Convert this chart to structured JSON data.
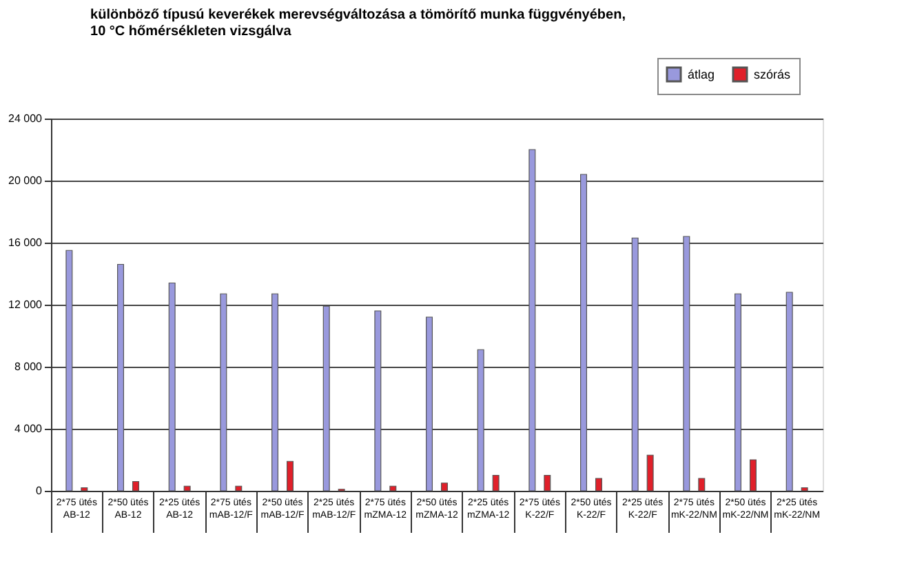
{
  "chart_data": {
    "type": "bar",
    "title": [
      "különböző típusú keverékek merevségváltozása a tömörítő munka függvényében,",
      "10 °C hőmérsékleten vizsgálva"
    ],
    "categories": [
      "2*75 ütés\nAB-12",
      "2*50 ütés\nAB-12",
      "2*25 ütés\nAB-12",
      "2*75 ütés\nmAB-12/F",
      "2*50 ütés\nmAB-12/F",
      "2*25 ütés\nmAB-12/F",
      "2*75 ütés\nmZMA-12",
      "2*50 ütés\nmZMA-12",
      "2*25 ütés\nmZMA-12",
      "2*75 ütés\nK-22/F",
      "2*50 ütés\nK-22/F",
      "2*25 ütés\nK-22/F",
      "2*75 ütés\nmK-22/NM",
      "2*50 ütés\nmK-22/NM",
      "2*25 ütés\nmK-22/NM"
    ],
    "series": [
      {
        "name": "átlag",
        "color": "#9999dd",
        "values": [
          15500,
          14600,
          13400,
          12700,
          12700,
          11900,
          11600,
          11200,
          9100,
          22000,
          20400,
          16300,
          16400,
          12700,
          12800
        ]
      },
      {
        "name": "szórás",
        "color": "#e0202a",
        "values": [
          200,
          600,
          300,
          300,
          1900,
          100,
          300,
          500,
          1000,
          1000,
          800,
          2300,
          800,
          2000,
          200
        ]
      }
    ],
    "ylim": [
      0,
      24000
    ],
    "yticks": [
      {
        "value": 0,
        "label": "0"
      },
      {
        "value": 4000,
        "label": "4 000"
      },
      {
        "value": 8000,
        "label": "8 000"
      },
      {
        "value": 12000,
        "label": "12 000"
      },
      {
        "value": 16000,
        "label": "16 000"
      },
      {
        "value": 20000,
        "label": "20 000"
      },
      {
        "value": 24000,
        "label": "24 000"
      }
    ],
    "grid": "y",
    "legend": "top right"
  }
}
